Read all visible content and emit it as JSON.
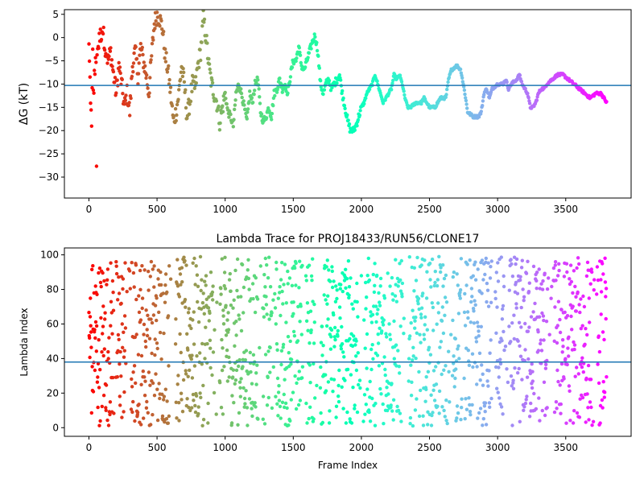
{
  "chart_data": [
    {
      "type": "scatter",
      "title": "",
      "xlabel": "",
      "ylabel": "ΔG (kT)",
      "xlim": [
        -180,
        3980
      ],
      "ylim": [
        -34.5,
        6
      ],
      "xticks": [
        0,
        500,
        1000,
        1500,
        2000,
        2500,
        3000,
        3500
      ],
      "yticks": [
        -30,
        -25,
        -20,
        -15,
        -10,
        -5,
        0,
        5
      ],
      "reference_line": -10.3,
      "colormap": "rainbow",
      "grid": false,
      "trend": [
        [
          0,
          -2
        ],
        [
          20,
          -20
        ],
        [
          40,
          -8
        ],
        [
          60,
          -3
        ],
        [
          80,
          0
        ],
        [
          100,
          2
        ],
        [
          120,
          -2
        ],
        [
          140,
          -5
        ],
        [
          160,
          -3
        ],
        [
          180,
          -8
        ],
        [
          200,
          -12
        ],
        [
          220,
          -6
        ],
        [
          240,
          -10
        ],
        [
          260,
          -15
        ],
        [
          280,
          -12
        ],
        [
          300,
          -16
        ],
        [
          320,
          -6
        ],
        [
          340,
          -3
        ],
        [
          360,
          -8
        ],
        [
          380,
          -2
        ],
        [
          400,
          -5
        ],
        [
          420,
          -8
        ],
        [
          440,
          -12
        ],
        [
          460,
          -4
        ],
        [
          480,
          3
        ],
        [
          500,
          5
        ],
        [
          520,
          4
        ],
        [
          540,
          2
        ],
        [
          560,
          -4
        ],
        [
          580,
          -7
        ],
        [
          600,
          -12
        ],
        [
          620,
          -18
        ],
        [
          640,
          -16
        ],
        [
          660,
          -12
        ],
        [
          680,
          -6
        ],
        [
          700,
          -10
        ],
        [
          720,
          -17
        ],
        [
          740,
          -14
        ],
        [
          760,
          -10
        ],
        [
          780,
          -11
        ],
        [
          800,
          -6
        ],
        [
          820,
          -3
        ],
        [
          840,
          4
        ],
        [
          860,
          0
        ],
        [
          880,
          -6
        ],
        [
          900,
          -10
        ],
        [
          920,
          -12
        ],
        [
          940,
          -14
        ],
        [
          960,
          -18
        ],
        [
          980,
          -15
        ],
        [
          1000,
          -12
        ],
        [
          1020,
          -16
        ],
        [
          1040,
          -17
        ],
        [
          1060,
          -19
        ],
        [
          1080,
          -12
        ],
        [
          1100,
          -10
        ],
        [
          1120,
          -12
        ],
        [
          1140,
          -15
        ],
        [
          1160,
          -18
        ],
        [
          1180,
          -12
        ],
        [
          1200,
          -14
        ],
        [
          1220,
          -10
        ],
        [
          1240,
          -9
        ],
        [
          1260,
          -16
        ],
        [
          1280,
          -18
        ],
        [
          1300,
          -17
        ],
        [
          1320,
          -15
        ],
        [
          1340,
          -17
        ],
        [
          1360,
          -12
        ],
        [
          1380,
          -11
        ],
        [
          1400,
          -9
        ],
        [
          1420,
          -11
        ],
        [
          1440,
          -10
        ],
        [
          1460,
          -12
        ],
        [
          1480,
          -8
        ],
        [
          1500,
          -5
        ],
        [
          1520,
          -5
        ],
        [
          1540,
          -2
        ],
        [
          1560,
          -6
        ],
        [
          1580,
          -7
        ],
        [
          1600,
          -5
        ],
        [
          1620,
          -3
        ],
        [
          1640,
          -1
        ],
        [
          1660,
          0.5
        ],
        [
          1680,
          -3
        ],
        [
          1700,
          -10
        ],
        [
          1720,
          -12
        ],
        [
          1740,
          -10
        ],
        [
          1760,
          -9
        ],
        [
          1780,
          -11
        ],
        [
          1800,
          -10
        ],
        [
          1820,
          -9
        ],
        [
          1840,
          -8
        ],
        [
          1860,
          -12
        ],
        [
          1880,
          -15
        ],
        [
          1900,
          -18
        ],
        [
          1920,
          -20
        ],
        [
          1940,
          -20
        ],
        [
          1960,
          -19
        ],
        [
          1980,
          -17
        ],
        [
          2000,
          -15
        ],
        [
          2020,
          -14
        ],
        [
          2040,
          -12
        ],
        [
          2060,
          -11
        ],
        [
          2080,
          -10
        ],
        [
          2100,
          -8
        ],
        [
          2120,
          -10
        ],
        [
          2140,
          -12
        ],
        [
          2160,
          -14
        ],
        [
          2180,
          -13
        ],
        [
          2200,
          -12
        ],
        [
          2220,
          -11
        ],
        [
          2240,
          -8
        ],
        [
          2260,
          -9
        ],
        [
          2280,
          -8
        ],
        [
          2300,
          -10
        ],
        [
          2320,
          -13
        ],
        [
          2340,
          -15
        ],
        [
          2360,
          -15
        ],
        [
          2400,
          -14
        ],
        [
          2440,
          -14
        ],
        [
          2460,
          -13
        ],
        [
          2480,
          -14
        ],
        [
          2500,
          -15
        ],
        [
          2540,
          -15
        ],
        [
          2580,
          -13
        ],
        [
          2620,
          -13
        ],
        [
          2640,
          -9
        ],
        [
          2660,
          -7
        ],
        [
          2700,
          -6
        ],
        [
          2730,
          -7
        ],
        [
          2760,
          -12
        ],
        [
          2780,
          -16
        ],
        [
          2820,
          -17
        ],
        [
          2860,
          -17
        ],
        [
          2880,
          -16
        ],
        [
          2900,
          -12
        ],
        [
          2920,
          -11
        ],
        [
          2940,
          -13
        ],
        [
          2960,
          -11
        ],
        [
          3000,
          -10
        ],
        [
          3040,
          -10
        ],
        [
          3060,
          -9
        ],
        [
          3080,
          -11
        ],
        [
          3100,
          -10
        ],
        [
          3140,
          -9
        ],
        [
          3160,
          -8
        ],
        [
          3180,
          -10
        ],
        [
          3200,
          -11
        ],
        [
          3220,
          -12
        ],
        [
          3240,
          -15
        ],
        [
          3260,
          -15
        ],
        [
          3280,
          -14
        ],
        [
          3300,
          -12
        ],
        [
          3320,
          -11
        ],
        [
          3340,
          -11
        ],
        [
          3360,
          -10
        ],
        [
          3400,
          -9
        ],
        [
          3440,
          -8
        ],
        [
          3480,
          -8
        ],
        [
          3520,
          -9
        ],
        [
          3560,
          -10
        ],
        [
          3600,
          -11
        ],
        [
          3640,
          -12
        ],
        [
          3680,
          -13
        ],
        [
          3720,
          -12
        ],
        [
          3760,
          -12
        ],
        [
          3780,
          -13
        ],
        [
          3800,
          -14
        ]
      ]
    },
    {
      "type": "scatter",
      "title": "Lambda Trace for PROJ18433/RUN56/CLONE17",
      "xlabel": "Frame Index",
      "ylabel": "Lambda Index",
      "xlim": [
        -180,
        3980
      ],
      "ylim": [
        -5,
        104
      ],
      "xticks": [
        0,
        500,
        1000,
        1500,
        2000,
        2500,
        3000,
        3500
      ],
      "yticks": [
        0,
        20,
        40,
        60,
        80,
        100
      ],
      "reference_line": 38,
      "colormap": "rainbow",
      "grid": false,
      "point_range": [
        1,
        99
      ]
    }
  ]
}
